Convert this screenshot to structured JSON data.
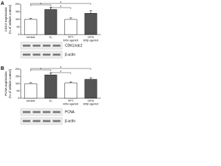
{
  "chart_data": [
    {
      "type": "bar",
      "panel": "A",
      "ylabel": [
        "CDC2 expression",
        "(% of vehicle control)"
      ],
      "categories": [
        [
          "vehicle"
        ],
        [
          "E₂"
        ],
        [
          "PPT",
          "ERα agonist"
        ],
        [
          "DPN",
          "ERβ agonist"
        ]
      ],
      "values": [
        100,
        165,
        100,
        140
      ],
      "errors": [
        8,
        15,
        10,
        18
      ],
      "colors": [
        "#ffffff",
        "#555555",
        "#ffffff",
        "#555555"
      ],
      "ylim": [
        0,
        200
      ],
      "yticks": [
        0,
        50,
        100,
        150,
        200
      ],
      "annotations": [
        "*",
        "*",
        "*"
      ],
      "blots": [
        "CDK1/cdc2",
        "β-actin"
      ]
    },
    {
      "type": "bar",
      "panel": "B",
      "ylabel": [
        "PCNA expression",
        "(% of vehicle control)"
      ],
      "categories": [
        [
          "vehicle"
        ],
        [
          "E₂"
        ],
        [
          "PPT",
          "ERα agonist"
        ],
        [
          "DPN",
          "ERβ agonist"
        ]
      ],
      "values": [
        100,
        160,
        105,
        130
      ],
      "errors": [
        6,
        14,
        8,
        10
      ],
      "colors": [
        "#ffffff",
        "#555555",
        "#ffffff",
        "#555555"
      ],
      "ylim": [
        0,
        200
      ],
      "yticks": [
        0,
        50,
        100,
        150,
        200
      ],
      "annotations": [
        "*",
        "*",
        "*"
      ],
      "blots": [
        "PCNA",
        "β-actin"
      ]
    }
  ]
}
